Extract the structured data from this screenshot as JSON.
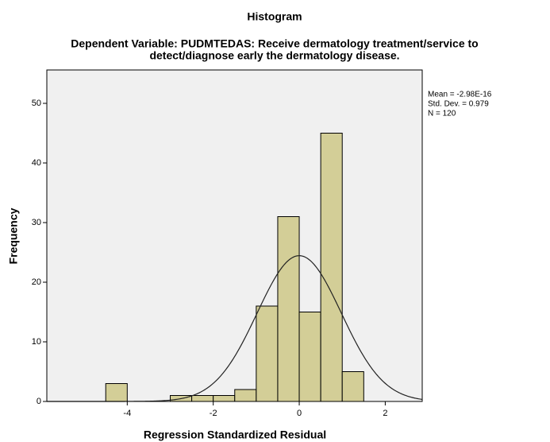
{
  "chart_data": {
    "type": "histogram",
    "title": "Histogram",
    "subtitle": [
      "Dependent Variable: PUDMTEDAS: Receive dermatology treatment/service to",
      "detect/diagnose early the dermatology disease."
    ],
    "x_label": "Regression Standardized Residual",
    "y_label": "Frequency",
    "bins": [
      -4.5,
      -4.0,
      -3.5,
      -3.0,
      -2.5,
      -2.0,
      -1.5,
      -1.0,
      -0.5,
      0,
      0.5,
      1.0,
      1.5
    ],
    "values": [
      3,
      0,
      0,
      1,
      1,
      1,
      2,
      16,
      31,
      15,
      45,
      5
    ],
    "color": "#d3ce97",
    "xlim": [
      -5.87,
      2.86
    ],
    "xticks": [
      -4,
      -2,
      0,
      2
    ],
    "ylim": [
      0,
      55.6
    ],
    "yticks": [
      0,
      10,
      20,
      30,
      40,
      50
    ],
    "stats": [
      {
        "value": -2.98e-16,
        "label": "Mean = -2.98E-16"
      },
      {
        "value": 0.979,
        "label": "Std. Dev. = 0.979"
      },
      {
        "value": 120,
        "label": "N = 120"
      }
    ],
    "normal_curve": true
  }
}
